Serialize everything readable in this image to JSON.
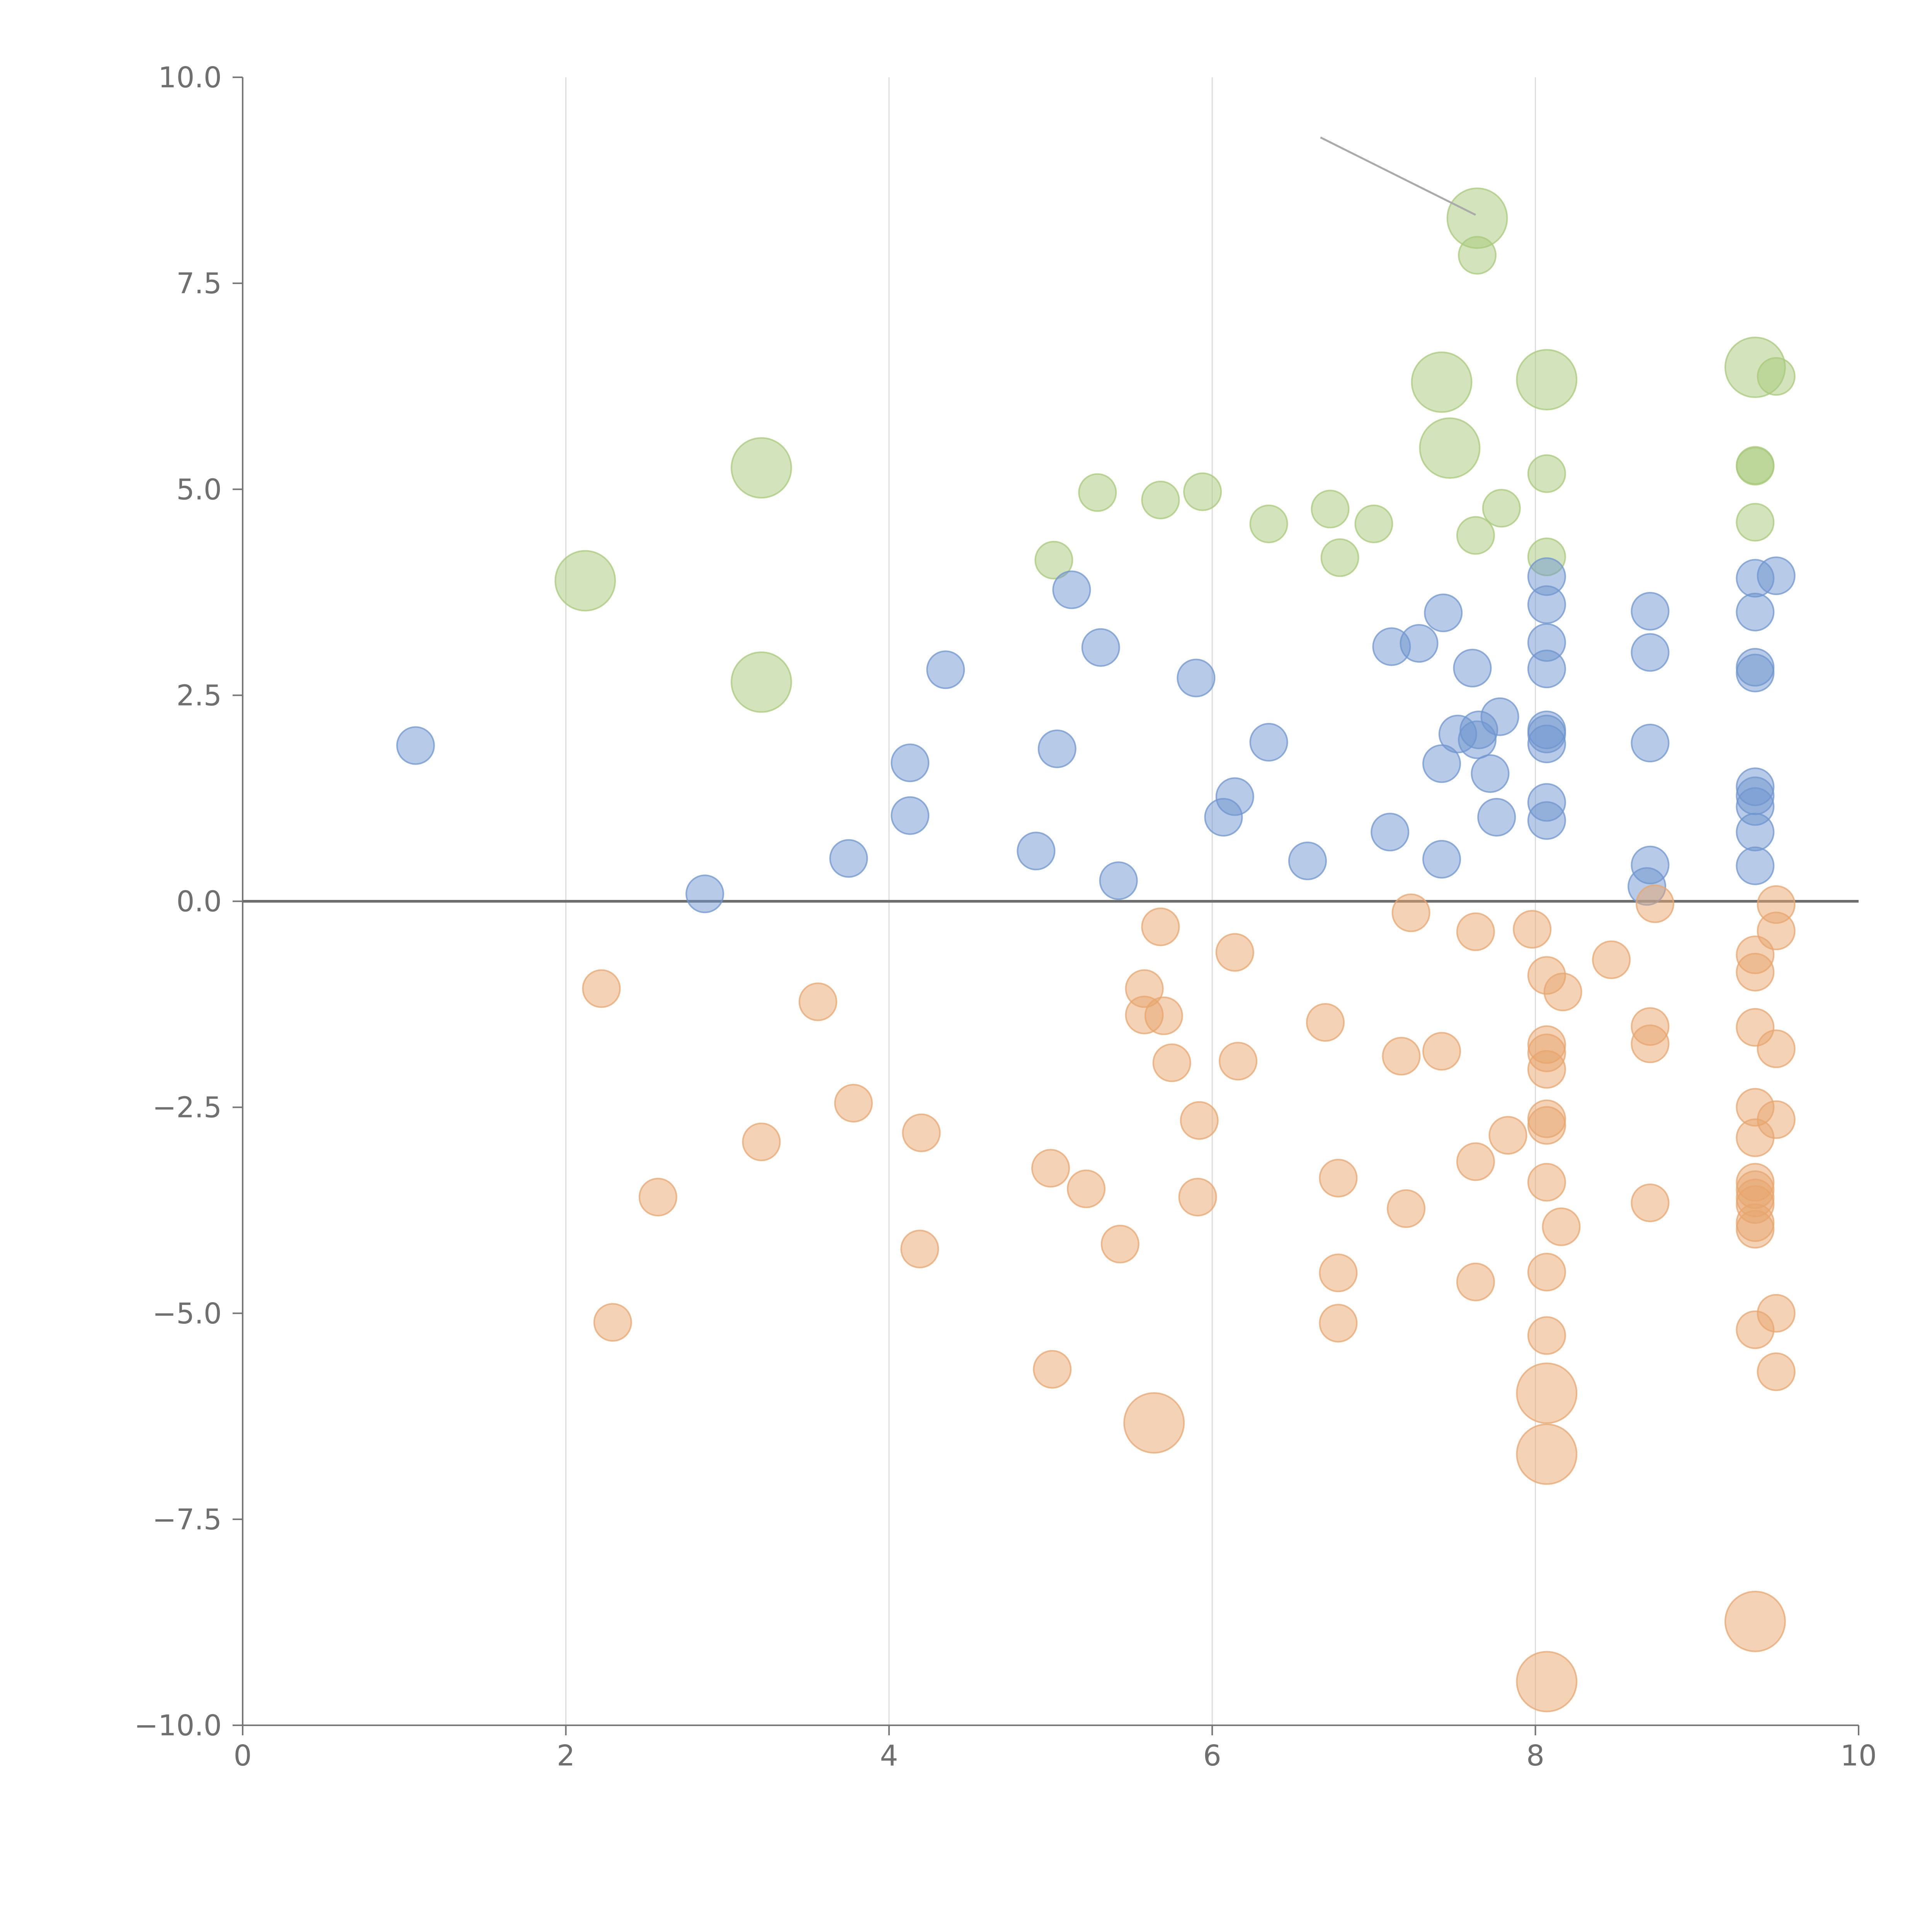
{
  "chart_data": {
    "type": "scatter",
    "title": "",
    "xlabel": "",
    "ylabel": "",
    "xlim": [
      0,
      10
    ],
    "ylim": [
      -10,
      10
    ],
    "x_ticks": [
      0,
      2,
      4,
      6,
      8,
      10
    ],
    "y_ticks": [
      -10,
      -7.5,
      -5,
      -2.5,
      0,
      2.5,
      5,
      7.5,
      10
    ],
    "x_tick_labels": [
      "0",
      "2",
      "4",
      "6",
      "8",
      "10"
    ],
    "y_tick_labels": [
      "−10.0",
      "−7.5",
      "−5.0",
      "−2.5",
      "0.0",
      "2.5",
      "5.0",
      "7.5",
      "10.0"
    ],
    "grid": "vertical",
    "zero_line": true,
    "colors": {
      "green": "#a8c97a",
      "blue": "#6f95cf",
      "orange": "#e8a66d",
      "axis": "#777777",
      "grid": "#dcdcdc"
    },
    "annotations": [
      {
        "from": [
          6.67,
          9.27
        ],
        "to": [
          7.63,
          8.33
        ]
      }
    ],
    "series": [
      {
        "name": "green",
        "color": "#a8c97a",
        "points": [
          [
            2.12,
            3.89,
            2.6
          ],
          [
            3.21,
            5.26,
            2.6
          ],
          [
            3.21,
            2.66,
            2.6
          ],
          [
            5.02,
            4.14,
            1
          ],
          [
            5.29,
            4.96,
            1
          ],
          [
            5.68,
            4.87,
            1
          ],
          [
            5.94,
            4.97,
            1
          ],
          [
            6.35,
            4.58,
            1
          ],
          [
            6.73,
            4.76,
            1
          ],
          [
            6.79,
            4.17,
            1
          ],
          [
            7.0,
            4.58,
            1
          ],
          [
            7.47,
            5.5,
            2.6
          ],
          [
            7.42,
            6.3,
            2.6
          ],
          [
            7.64,
            8.29,
            2.6
          ],
          [
            7.64,
            7.84,
            1
          ],
          [
            7.63,
            4.44,
            1
          ],
          [
            7.79,
            4.77,
            1
          ],
          [
            8.07,
            6.33,
            2.6
          ],
          [
            8.07,
            5.19,
            1
          ],
          [
            8.07,
            4.18,
            1
          ],
          [
            9.36,
            6.48,
            2.6
          ],
          [
            9.49,
            6.37,
            1
          ],
          [
            9.36,
            5.29,
            1
          ],
          [
            9.36,
            5.28,
            1
          ],
          [
            9.36,
            4.6,
            1
          ]
        ]
      },
      {
        "name": "blue",
        "color": "#6f95cf",
        "points": [
          [
            1.07,
            1.89,
            1
          ],
          [
            2.86,
            0.09,
            1
          ],
          [
            3.75,
            0.52,
            1
          ],
          [
            4.13,
            1.68,
            1
          ],
          [
            4.13,
            1.04,
            1
          ],
          [
            4.35,
            2.81,
            1
          ],
          [
            4.91,
            0.61,
            1
          ],
          [
            5.04,
            1.85,
            1
          ],
          [
            5.13,
            3.78,
            1
          ],
          [
            5.31,
            3.08,
            1
          ],
          [
            5.42,
            0.25,
            1
          ],
          [
            5.9,
            2.71,
            1
          ],
          [
            6.07,
            1.02,
            1
          ],
          [
            6.14,
            1.27,
            1
          ],
          [
            6.35,
            1.93,
            1
          ],
          [
            6.59,
            0.49,
            1
          ],
          [
            7.1,
            0.84,
            1
          ],
          [
            7.11,
            3.09,
            1
          ],
          [
            7.28,
            3.13,
            1
          ],
          [
            7.42,
            0.51,
            1
          ],
          [
            7.42,
            1.67,
            1
          ],
          [
            7.43,
            3.5,
            1
          ],
          [
            7.52,
            2.03,
            1
          ],
          [
            7.61,
            2.83,
            1
          ],
          [
            7.64,
            1.96,
            1
          ],
          [
            7.65,
            2.08,
            1
          ],
          [
            7.72,
            1.55,
            1
          ],
          [
            7.76,
            1.02,
            1
          ],
          [
            7.78,
            2.24,
            1
          ],
          [
            8.07,
            3.94,
            1
          ],
          [
            8.07,
            3.6,
            1
          ],
          [
            8.07,
            3.14,
            1
          ],
          [
            8.07,
            2.82,
            1
          ],
          [
            8.07,
            2.08,
            1
          ],
          [
            8.07,
            2.03,
            1
          ],
          [
            8.07,
            1.91,
            1
          ],
          [
            8.07,
            1.2,
            1
          ],
          [
            8.07,
            0.98,
            1
          ],
          [
            8.71,
            3.52,
            1
          ],
          [
            8.71,
            3.02,
            1
          ],
          [
            8.71,
            1.92,
            1
          ],
          [
            8.71,
            0.44,
            1
          ],
          [
            8.69,
            0.18,
            1
          ],
          [
            9.36,
            3.92,
            1
          ],
          [
            9.49,
            3.95,
            1
          ],
          [
            9.36,
            3.51,
            1
          ],
          [
            9.36,
            2.84,
            1
          ],
          [
            9.36,
            2.77,
            1
          ],
          [
            9.36,
            1.39,
            1
          ],
          [
            9.36,
            1.28,
            1
          ],
          [
            9.36,
            1.15,
            1
          ],
          [
            9.36,
            0.84,
            1
          ],
          [
            9.36,
            0.43,
            1
          ]
        ]
      },
      {
        "name": "orange",
        "color": "#e8a66d",
        "points": [
          [
            2.22,
            -1.06,
            1
          ],
          [
            2.29,
            -5.11,
            1
          ],
          [
            2.57,
            -3.59,
            1
          ],
          [
            3.21,
            -2.92,
            1
          ],
          [
            3.56,
            -1.22,
            1
          ],
          [
            3.78,
            -2.45,
            1
          ],
          [
            4.19,
            -4.22,
            1
          ],
          [
            4.2,
            -2.81,
            1
          ],
          [
            5.0,
            -3.24,
            1
          ],
          [
            5.01,
            -5.68,
            1
          ],
          [
            5.22,
            -3.49,
            1
          ],
          [
            5.43,
            -4.16,
            1
          ],
          [
            5.58,
            -1.06,
            1
          ],
          [
            5.58,
            -1.38,
            1
          ],
          [
            5.68,
            -0.31,
            1
          ],
          [
            5.7,
            -1.39,
            1
          ],
          [
            5.75,
            -1.96,
            1
          ],
          [
            5.64,
            -6.33,
            2.6
          ],
          [
            5.91,
            -3.59,
            1
          ],
          [
            5.92,
            -2.66,
            1
          ],
          [
            6.14,
            -0.62,
            1
          ],
          [
            6.16,
            -1.94,
            1
          ],
          [
            6.7,
            -1.47,
            1
          ],
          [
            6.78,
            -3.36,
            1
          ],
          [
            6.78,
            -4.51,
            1
          ],
          [
            6.78,
            -5.12,
            1
          ],
          [
            7.17,
            -1.88,
            1
          ],
          [
            7.2,
            -3.73,
            1
          ],
          [
            7.23,
            -0.14,
            1
          ],
          [
            7.42,
            -1.82,
            1
          ],
          [
            7.63,
            -0.37,
            1
          ],
          [
            7.63,
            -3.16,
            1
          ],
          [
            7.63,
            -4.62,
            1
          ],
          [
            7.83,
            -2.84,
            1
          ],
          [
            7.98,
            -0.34,
            1
          ],
          [
            8.07,
            -0.9,
            1
          ],
          [
            8.07,
            -1.74,
            1
          ],
          [
            8.07,
            -1.84,
            1
          ],
          [
            8.07,
            -2.04,
            1
          ],
          [
            8.07,
            -2.64,
            1
          ],
          [
            8.07,
            -2.72,
            1
          ],
          [
            8.07,
            -3.41,
            1
          ],
          [
            8.07,
            -4.5,
            1
          ],
          [
            8.07,
            -5.27,
            1
          ],
          [
            8.07,
            -5.97,
            2.6
          ],
          [
            8.07,
            -6.71,
            2.6
          ],
          [
            8.07,
            -9.47,
            2.6
          ],
          [
            8.17,
            -1.1,
            1
          ],
          [
            8.16,
            -3.95,
            1
          ],
          [
            8.47,
            -0.71,
            1
          ],
          [
            8.71,
            -1.52,
            1
          ],
          [
            8.71,
            -1.73,
            1
          ],
          [
            8.71,
            -3.66,
            1
          ],
          [
            8.74,
            -0.03,
            1
          ],
          [
            9.36,
            -0.65,
            1
          ],
          [
            9.36,
            -0.86,
            1
          ],
          [
            9.36,
            -1.53,
            1
          ],
          [
            9.36,
            -2.5,
            1
          ],
          [
            9.36,
            -2.87,
            1
          ],
          [
            9.36,
            -3.41,
            1
          ],
          [
            9.36,
            -3.5,
            1
          ],
          [
            9.36,
            -3.6,
            1
          ],
          [
            9.36,
            -3.68,
            1
          ],
          [
            9.36,
            -3.9,
            1
          ],
          [
            9.36,
            -3.98,
            1
          ],
          [
            9.36,
            -5.2,
            1
          ],
          [
            9.36,
            -8.74,
            2.6
          ],
          [
            9.49,
            -0.04,
            1
          ],
          [
            9.49,
            -0.36,
            1
          ],
          [
            9.49,
            -1.79,
            1
          ],
          [
            9.49,
            -2.65,
            1
          ],
          [
            9.49,
            -5.0,
            1
          ],
          [
            9.49,
            -5.71,
            1
          ]
        ]
      }
    ]
  }
}
